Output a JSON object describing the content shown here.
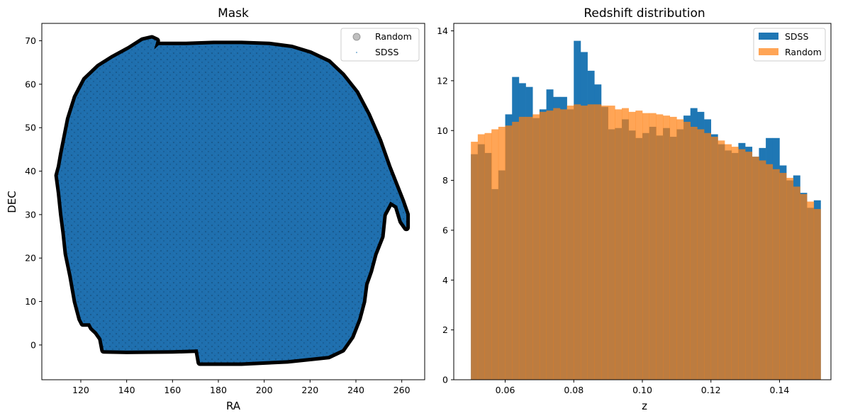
{
  "chart_data": [
    {
      "type": "scatter",
      "title": "Mask",
      "xlabel": "RA",
      "ylabel": "DEC",
      "xlim": [
        103,
        270
      ],
      "ylim": [
        -8,
        74
      ],
      "xticks": [
        120,
        140,
        160,
        180,
        200,
        220,
        240,
        260
      ],
      "yticks": [
        0,
        10,
        20,
        30,
        40,
        50,
        60,
        70
      ],
      "legend_position": "upper-right",
      "series": [
        {
          "name": "Random",
          "color": "#000000",
          "alpha": 0.25,
          "boundary": [
            [
              111,
              41
            ],
            [
              112,
              44
            ],
            [
              115,
              52
            ],
            [
              118,
              57
            ],
            [
              122,
              61
            ],
            [
              128,
              64
            ],
            [
              134,
              66
            ],
            [
              141,
              68
            ],
            [
              147,
              70
            ],
            [
              151,
              70.5
            ],
            [
              153,
              70
            ],
            [
              152,
              68
            ],
            [
              154,
              69
            ],
            [
              166,
              69
            ],
            [
              178,
              69.2
            ],
            [
              190,
              69.2
            ],
            [
              202,
              69
            ],
            [
              212,
              68.3
            ],
            [
              220,
              67
            ],
            [
              228,
              65
            ],
            [
              234,
              62
            ],
            [
              240,
              58
            ],
            [
              245,
              53
            ],
            [
              250,
              47
            ],
            [
              254,
              41
            ],
            [
              257,
              37
            ],
            [
              260,
              33
            ],
            [
              262,
              30
            ],
            [
              262,
              27
            ],
            [
              260,
              28.5
            ],
            [
              258,
              32
            ],
            [
              255,
              33
            ],
            [
              252,
              30
            ],
            [
              251,
              25
            ],
            [
              248,
              21
            ],
            [
              246,
              17
            ],
            [
              244,
              14
            ],
            [
              243,
              10
            ],
            [
              241,
              6
            ],
            [
              238,
              2
            ],
            [
              234,
              -1
            ],
            [
              228,
              -2.5
            ],
            [
              210,
              -3.5
            ],
            [
              190,
              -4
            ],
            [
              172,
              -4
            ],
            [
              171,
              -1
            ],
            [
              160,
              -1.2
            ],
            [
              140,
              -1.3
            ],
            [
              130,
              -1.2
            ],
            [
              129,
              1.5
            ],
            [
              127,
              3
            ],
            [
              125,
              4
            ],
            [
              124,
              5
            ],
            [
              121,
              5
            ],
            [
              120,
              6
            ],
            [
              118,
              10
            ],
            [
              116,
              16
            ],
            [
              114,
              21
            ],
            [
              113,
              26
            ],
            [
              112,
              30
            ],
            [
              111,
              35
            ],
            [
              110,
              39
            ]
          ]
        },
        {
          "name": "SDSS",
          "color": "#1f77b4",
          "alpha": 0.9
        }
      ]
    },
    {
      "type": "histogram",
      "title": "Redshift distribution",
      "xlabel": "z",
      "ylabel": "",
      "xlim": [
        0.045,
        0.155
      ],
      "ylim": [
        0,
        14.3
      ],
      "xticks": [
        0.06,
        0.08,
        0.1,
        0.12,
        0.14
      ],
      "xtick_labels": [
        "0.06",
        "0.08",
        "0.10",
        "0.12",
        "0.14"
      ],
      "yticks": [
        0,
        2,
        4,
        6,
        8,
        10,
        12,
        14
      ],
      "legend_position": "upper-right",
      "bin_start": 0.05,
      "bin_width": 0.002,
      "series": [
        {
          "name": "SDSS",
          "color": "#1f77b4",
          "values": [
            9.05,
            9.45,
            9.1,
            7.65,
            8.4,
            10.65,
            12.15,
            11.9,
            11.75,
            10.5,
            10.85,
            11.65,
            11.35,
            11.35,
            10.85,
            13.6,
            13.15,
            12.4,
            11.85,
            10.95,
            10.05,
            10.1,
            10.45,
            10.0,
            9.7,
            9.9,
            10.15,
            9.8,
            10.1,
            9.75,
            10.05,
            10.6,
            10.9,
            10.75,
            10.45,
            9.85,
            9.45,
            9.2,
            9.1,
            9.5,
            9.35,
            8.95,
            9.3,
            9.7,
            9.7,
            8.6,
            8.0,
            8.2,
            7.5,
            6.9,
            7.2
          ],
          "opacity": 1.0
        },
        {
          "name": "Random",
          "color": "#ff7f0e",
          "values": [
            9.55,
            9.85,
            9.9,
            10.05,
            10.15,
            10.2,
            10.35,
            10.55,
            10.55,
            10.65,
            10.75,
            10.8,
            10.9,
            10.85,
            11.0,
            11.05,
            11.0,
            11.05,
            11.05,
            11.0,
            11.0,
            10.85,
            10.9,
            10.75,
            10.8,
            10.7,
            10.7,
            10.65,
            10.6,
            10.55,
            10.45,
            10.35,
            10.15,
            10.05,
            9.9,
            9.75,
            9.6,
            9.45,
            9.35,
            9.25,
            9.15,
            8.95,
            8.8,
            8.65,
            8.45,
            8.3,
            8.1,
            7.75,
            7.45,
            7.15,
            6.85
          ],
          "opacity": 0.7
        }
      ]
    }
  ]
}
